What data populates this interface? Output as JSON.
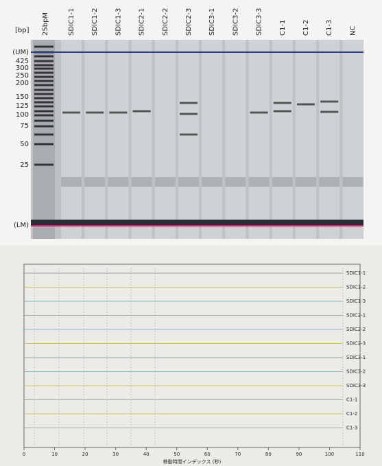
{
  "gel": {
    "unit": "[bp]",
    "ladder": "25bpM",
    "lanes": [
      "SDIC1-1",
      "SDIC1-2",
      "SDIC1-3",
      "SDIC2-1",
      "SDIC2-2",
      "SDIC2-3",
      "SDIC3-1",
      "SDIC3-2",
      "SDIC3-3",
      "C1-1",
      "C1-2",
      "C1-3",
      "NC"
    ],
    "size_labels": [
      "(UM)",
      "425",
      "300",
      "250",
      "200",
      "150",
      "125",
      "100",
      "75",
      "50",
      "25",
      "(LM)"
    ]
  },
  "electropherogram": {
    "traces": [
      "SDIC1-1",
      "SDIC1-2",
      "SDIC1-3",
      "SDIC2-1",
      "SDIC2-2",
      "SDIC2-3",
      "SDIC3-1",
      "SDIC3-2",
      "SDIC3-3",
      "C1-1",
      "C1-2",
      "C1-3"
    ],
    "x_ticks": [
      0,
      10,
      20,
      30,
      40,
      50,
      60,
      70,
      80,
      90,
      100,
      110
    ],
    "x_label": "移動時間インデックス (秒)"
  }
}
